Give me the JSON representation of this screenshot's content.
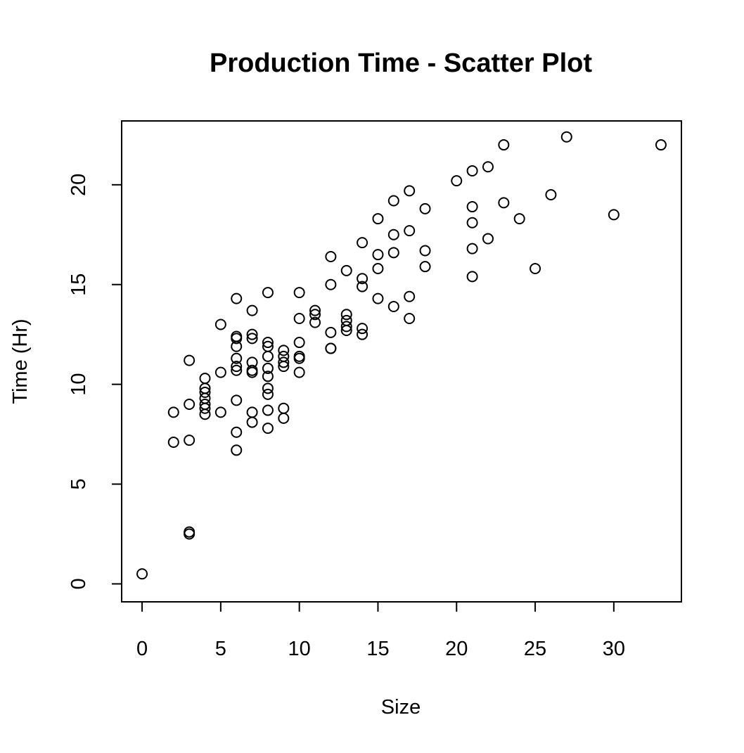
{
  "chart_data": {
    "type": "scatter",
    "title": "Production Time - Scatter Plot",
    "xlabel": "Size",
    "ylabel": "Time (Hr)",
    "xlim": [
      -1.3,
      34.3
    ],
    "ylim": [
      -0.9,
      23.2
    ],
    "x_ticks": [
      0,
      5,
      10,
      15,
      20,
      25,
      30
    ],
    "y_ticks": [
      0,
      5,
      10,
      15,
      20
    ],
    "x_tick_labels": [
      "0",
      "5",
      "10",
      "15",
      "20",
      "25",
      "30"
    ],
    "y_tick_labels": [
      "0",
      "5",
      "10",
      "15",
      "20"
    ],
    "grid": false,
    "points": [
      [
        0,
        0.5
      ],
      [
        2,
        8.6
      ],
      [
        2,
        7.1
      ],
      [
        3,
        11.2
      ],
      [
        3,
        9.0
      ],
      [
        3,
        7.2
      ],
      [
        3,
        2.6
      ],
      [
        3,
        2.5
      ],
      [
        4,
        10.3
      ],
      [
        4,
        9.8
      ],
      [
        4,
        9.6
      ],
      [
        4,
        9.3
      ],
      [
        4,
        9.0
      ],
      [
        4,
        8.8
      ],
      [
        4,
        8.5
      ],
      [
        5,
        13.0
      ],
      [
        5,
        10.6
      ],
      [
        5,
        8.6
      ],
      [
        6,
        14.3
      ],
      [
        6,
        12.4
      ],
      [
        6,
        12.3
      ],
      [
        6,
        11.9
      ],
      [
        6,
        11.3
      ],
      [
        6,
        10.9
      ],
      [
        6,
        10.7
      ],
      [
        6,
        9.2
      ],
      [
        6,
        7.6
      ],
      [
        6,
        6.7
      ],
      [
        7,
        13.7
      ],
      [
        7,
        12.5
      ],
      [
        7,
        12.3
      ],
      [
        7,
        11.1
      ],
      [
        7,
        10.7
      ],
      [
        7,
        10.6
      ],
      [
        7,
        8.6
      ],
      [
        7,
        8.1
      ],
      [
        8,
        14.6
      ],
      [
        8,
        12.1
      ],
      [
        8,
        11.9
      ],
      [
        8,
        11.4
      ],
      [
        8,
        10.8
      ],
      [
        8,
        10.4
      ],
      [
        8,
        9.8
      ],
      [
        8,
        9.5
      ],
      [
        8,
        8.7
      ],
      [
        8,
        7.8
      ],
      [
        9,
        11.7
      ],
      [
        9,
        11.4
      ],
      [
        9,
        11.1
      ],
      [
        9,
        10.9
      ],
      [
        9,
        8.8
      ],
      [
        9,
        8.3
      ],
      [
        10,
        14.6
      ],
      [
        10,
        13.3
      ],
      [
        10,
        12.1
      ],
      [
        10,
        11.4
      ],
      [
        10,
        11.3
      ],
      [
        10,
        10.6
      ],
      [
        11,
        13.7
      ],
      [
        11,
        13.5
      ],
      [
        11,
        13.1
      ],
      [
        12,
        16.4
      ],
      [
        12,
        15.0
      ],
      [
        12,
        12.6
      ],
      [
        12,
        11.8
      ],
      [
        12,
        11.8
      ],
      [
        13,
        15.7
      ],
      [
        13,
        13.5
      ],
      [
        13,
        13.2
      ],
      [
        13,
        12.9
      ],
      [
        13,
        12.7
      ],
      [
        14,
        17.1
      ],
      [
        14,
        15.3
      ],
      [
        14,
        14.9
      ],
      [
        14,
        12.8
      ],
      [
        14,
        12.5
      ],
      [
        15,
        18.3
      ],
      [
        15,
        16.5
      ],
      [
        15,
        15.8
      ],
      [
        15,
        14.3
      ],
      [
        16,
        19.2
      ],
      [
        16,
        17.5
      ],
      [
        16,
        16.6
      ],
      [
        16,
        13.9
      ],
      [
        17,
        19.7
      ],
      [
        17,
        17.7
      ],
      [
        17,
        14.4
      ],
      [
        17,
        13.3
      ],
      [
        18,
        18.8
      ],
      [
        18,
        16.7
      ],
      [
        18,
        15.9
      ],
      [
        20,
        20.2
      ],
      [
        21,
        20.7
      ],
      [
        21,
        18.9
      ],
      [
        21,
        18.1
      ],
      [
        21,
        16.8
      ],
      [
        21,
        15.4
      ],
      [
        22,
        20.9
      ],
      [
        22,
        17.3
      ],
      [
        23,
        22.0
      ],
      [
        23,
        19.1
      ],
      [
        24,
        18.3
      ],
      [
        25,
        15.8
      ],
      [
        26,
        19.5
      ],
      [
        27,
        22.4
      ],
      [
        30,
        18.5
      ],
      [
        33,
        22.0
      ]
    ]
  }
}
